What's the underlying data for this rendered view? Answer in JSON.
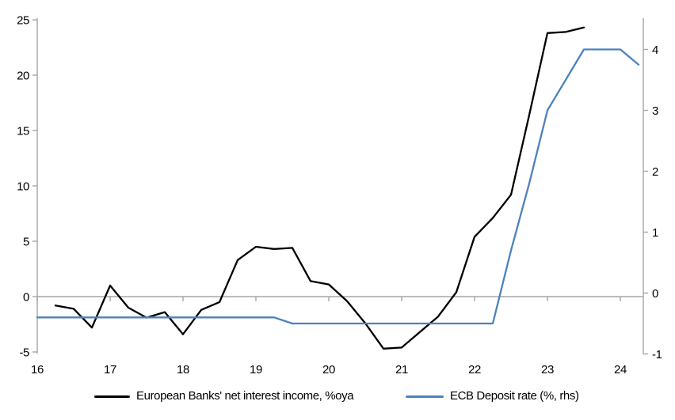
{
  "chart_data": {
    "type": "line",
    "title": "",
    "x_axis": {
      "tick_labels": [
        "16",
        "17",
        "18",
        "19",
        "20",
        "21",
        "22",
        "23",
        "24"
      ],
      "tick_values": [
        16,
        17,
        18,
        19,
        20,
        21,
        22,
        23,
        24
      ],
      "range": [
        16,
        24.3
      ],
      "frequency": "quarterly"
    },
    "left_axis": {
      "tick_values": [
        25,
        20,
        15,
        10,
        5,
        0,
        -5
      ],
      "range": [
        -5,
        25
      ]
    },
    "right_axis": {
      "tick_values": [
        4,
        3,
        2,
        1,
        0,
        -1
      ],
      "range": [
        -1,
        4.5
      ]
    },
    "grid": "zero-line-only",
    "legend_position": "bottom",
    "series": [
      {
        "name": "European Banks' net interest income, %oya",
        "axis": "left",
        "color": "#000000",
        "x": [
          16.25,
          16.5,
          16.75,
          17,
          17.25,
          17.5,
          17.75,
          18,
          18.25,
          18.5,
          18.75,
          19,
          19.25,
          19.5,
          19.75,
          20,
          20.25,
          20.5,
          20.75,
          21,
          21.25,
          21.5,
          21.75,
          22,
          22.25,
          22.5,
          22.75,
          23,
          23.25,
          23.5
        ],
        "values": [
          -0.8,
          -1.1,
          -2.8,
          1.0,
          -1.0,
          -1.9,
          -1.4,
          -3.4,
          -1.2,
          -0.5,
          3.3,
          4.5,
          4.3,
          4.4,
          1.4,
          1.1,
          -0.4,
          -2.4,
          -4.7,
          -4.6,
          -3.2,
          -1.8,
          0.4,
          5.4,
          7.1,
          9.2,
          16.4,
          23.8,
          23.9,
          24.3
        ]
      },
      {
        "name": "ECB Deposit rate (%, rhs)",
        "axis": "right",
        "color": "#4E81BD",
        "x": [
          16,
          16.25,
          16.5,
          16.75,
          17,
          17.25,
          17.5,
          17.75,
          18,
          18.25,
          18.5,
          18.75,
          19,
          19.25,
          19.5,
          19.75,
          20,
          20.25,
          20.5,
          20.75,
          21,
          21.25,
          21.5,
          21.75,
          22,
          22.25,
          22.5,
          22.75,
          23,
          23.25,
          23.5,
          23.75,
          24,
          24.25
        ],
        "values": [
          -0.4,
          -0.4,
          -0.4,
          -0.4,
          -0.4,
          -0.4,
          -0.4,
          -0.4,
          -0.4,
          -0.4,
          -0.4,
          -0.4,
          -0.4,
          -0.4,
          -0.5,
          -0.5,
          -0.5,
          -0.5,
          -0.5,
          -0.5,
          -0.5,
          -0.5,
          -0.5,
          -0.5,
          -0.5,
          -0.5,
          0.7,
          1.8,
          3.0,
          3.5,
          4.0,
          4.0,
          4.0,
          3.75
        ]
      }
    ]
  },
  "colors": {
    "axis_gray": "#A6A6A6",
    "text": "#000000",
    "background": "#FFFFFF"
  }
}
